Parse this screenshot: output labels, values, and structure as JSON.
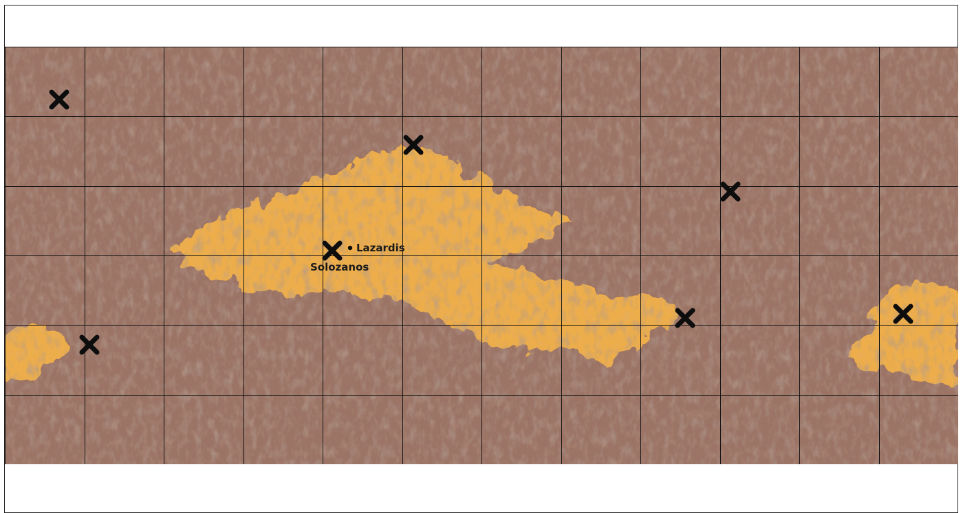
{
  "map": {
    "colors": {
      "terrain_base": "#9b7466",
      "terrain_dark": "#6e5146",
      "terrain_light": "#b08a7a",
      "highlight": "#f2b148",
      "grid": "#111111",
      "marker": "#0d0d0d"
    },
    "grid": {
      "columns": 12,
      "rows": 6
    },
    "labels": [
      {
        "id": "lazardis",
        "text": "Lazardis"
      },
      {
        "id": "solozanos",
        "text": "Solozanos"
      }
    ],
    "markers": [
      {
        "id": "marker-1",
        "icon": "x-marker-icon"
      },
      {
        "id": "marker-2",
        "icon": "x-marker-icon"
      },
      {
        "id": "marker-3",
        "icon": "x-marker-icon"
      },
      {
        "id": "marker-4",
        "icon": "x-marker-icon"
      },
      {
        "id": "marker-5",
        "icon": "x-marker-icon"
      },
      {
        "id": "marker-6",
        "icon": "x-marker-icon"
      },
      {
        "id": "marker-7",
        "icon": "x-marker-icon"
      }
    ],
    "city_dot_icon": "city-dot-icon"
  }
}
